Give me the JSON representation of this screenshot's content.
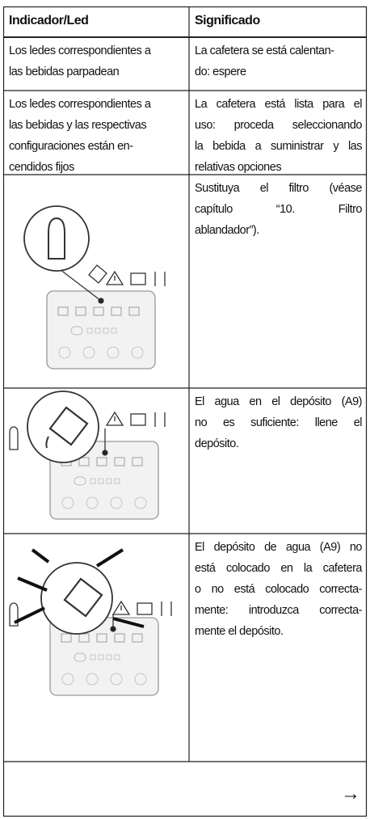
{
  "table": {
    "header": [
      "Indicador/Led",
      "Significado"
    ],
    "rows": [
      [
        [
          "Los ledes correspondientes a",
          "las bebidas parpadean"
        ],
        [
          "La cafetera se está calentan-",
          "do: espere"
        ]
      ],
      [
        [
          "Los ledes correspondientes a",
          "las bebidas y las respectivas",
          "configuraciones están en-",
          "cendidos fijos"
        ],
        [
          "La cafetera está lista para el",
          "uso: proceda seleccionando",
          "la bebida a suministrar y las",
          "relativas opciones"
        ]
      ],
      [
        [],
        [
          "Sustituya el filtro (véase",
          "capítulo “10. Filtro",
          "ablandador”)."
        ]
      ],
      [
        [],
        [
          "El agua en el depósito (A9)",
          "no es suficiente: llene el",
          "depósito."
        ]
      ],
      [
        [],
        [
          "El depósito de agua (A9) no",
          "está colocado en la cafetera",
          "o no está colocado correcta-",
          "mente: introduzca correcta-",
          "mente el depósito."
        ]
      ]
    ]
  },
  "footer": {
    "arrow": "→"
  }
}
